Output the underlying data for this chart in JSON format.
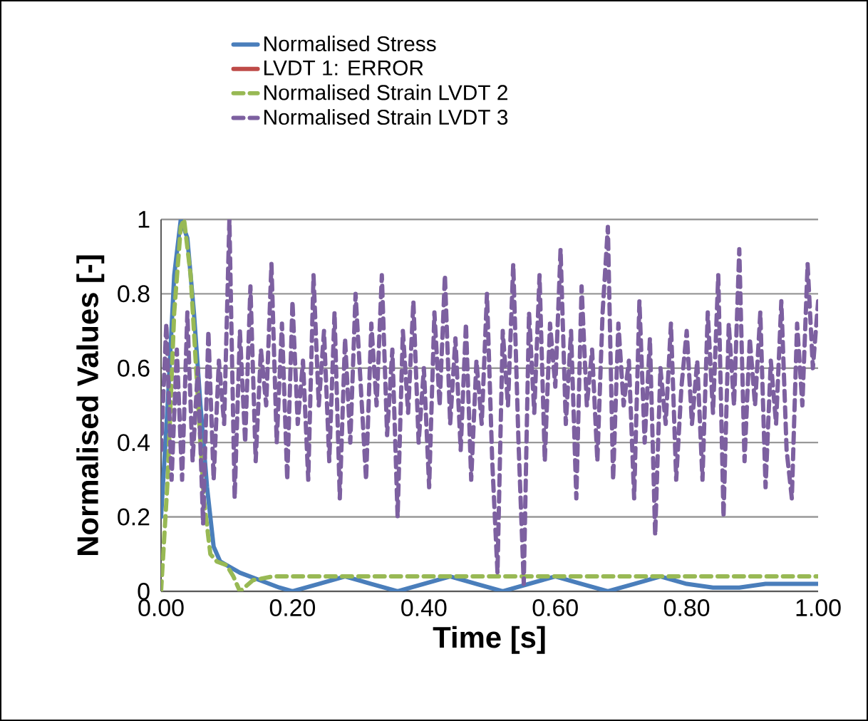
{
  "chart_data": {
    "type": "line",
    "xlabel": "Time [s]",
    "ylabel": "Normalised Values [-]",
    "xlim": [
      0,
      1
    ],
    "ylim": [
      0,
      1
    ],
    "xticks": [
      {
        "value": 0,
        "label": "0.00"
      },
      {
        "value": 0.2,
        "label": "0.20"
      },
      {
        "value": 0.4,
        "label": "0.40"
      },
      {
        "value": 0.6,
        "label": "0.60"
      },
      {
        "value": 0.8,
        "label": "0.80"
      },
      {
        "value": 1,
        "label": "1.00"
      }
    ],
    "yticks": [
      0,
      0.2,
      0.4,
      0.6,
      0.8,
      1
    ],
    "grid": "y",
    "legend": "top",
    "marker": "none",
    "series": [
      {
        "name": "Normalised Stress",
        "color": "#4a7ebb",
        "line_style": "solid",
        "x": [
          0,
          0.01,
          0.02,
          0.03,
          0.04,
          0.05,
          0.06,
          0.07,
          0.08,
          0.09,
          0.1,
          0.12,
          0.15,
          0.18,
          0.2,
          0.24,
          0.28,
          0.32,
          0.36,
          0.4,
          0.44,
          0.48,
          0.52,
          0.56,
          0.6,
          0.64,
          0.68,
          0.72,
          0.76,
          0.8,
          0.84,
          0.88,
          0.92,
          0.96,
          1
        ],
        "values": [
          0.2,
          0.5,
          0.85,
          1.0,
          0.95,
          0.75,
          0.5,
          0.28,
          0.12,
          0.08,
          0.07,
          0.05,
          0.03,
          0.01,
          0.0,
          0.02,
          0.04,
          0.02,
          0.0,
          0.02,
          0.04,
          0.02,
          0.0,
          0.02,
          0.04,
          0.02,
          0.0,
          0.02,
          0.04,
          0.02,
          0.01,
          0.01,
          0.02,
          0.02,
          0.02
        ]
      },
      {
        "name": "LVDT 1: ERROR",
        "color": "#be4b48",
        "line_style": "solid"
      },
      {
        "name": "Normalised Strain LVDT 2",
        "color": "#98b954",
        "line_style": "dashed",
        "x": [
          0,
          0.01,
          0.02,
          0.03,
          0.035,
          0.045,
          0.055,
          0.065,
          0.075,
          0.085,
          0.1,
          0.11,
          0.12,
          0.14,
          0.17,
          0.2,
          0.3,
          0.4,
          0.5,
          0.6,
          0.7,
          0.8,
          0.9,
          1
        ],
        "values": [
          0,
          0.3,
          0.75,
          0.98,
          1.0,
          0.85,
          0.55,
          0.25,
          0.1,
          0.08,
          0.07,
          0.04,
          0.0,
          0.03,
          0.04,
          0.04,
          0.04,
          0.04,
          0.04,
          0.04,
          0.04,
          0.04,
          0.04,
          0.04
        ]
      },
      {
        "name": "Normalised Strain LVDT 3",
        "color": "#7d60a0",
        "line_style": "dashed",
        "x": [
          0,
          0.008,
          0.016,
          0.024,
          0.032,
          0.04,
          0.048,
          0.056,
          0.064,
          0.072,
          0.08,
          0.088,
          0.096,
          0.104,
          0.112,
          0.12,
          0.128,
          0.136,
          0.144,
          0.152,
          0.16,
          0.168,
          0.176,
          0.184,
          0.192,
          0.2,
          0.208,
          0.216,
          0.224,
          0.232,
          0.24,
          0.248,
          0.256,
          0.264,
          0.272,
          0.28,
          0.288,
          0.296,
          0.304,
          0.312,
          0.32,
          0.328,
          0.336,
          0.344,
          0.352,
          0.36,
          0.368,
          0.376,
          0.384,
          0.392,
          0.4,
          0.408,
          0.416,
          0.424,
          0.432,
          0.44,
          0.448,
          0.456,
          0.464,
          0.472,
          0.48,
          0.488,
          0.496,
          0.504,
          0.512,
          0.52,
          0.528,
          0.536,
          0.544,
          0.552,
          0.56,
          0.568,
          0.576,
          0.584,
          0.592,
          0.6,
          0.608,
          0.616,
          0.624,
          0.632,
          0.64,
          0.648,
          0.656,
          0.664,
          0.672,
          0.68,
          0.688,
          0.696,
          0.704,
          0.712,
          0.72,
          0.728,
          0.736,
          0.744,
          0.752,
          0.76,
          0.768,
          0.776,
          0.784,
          0.792,
          0.8,
          0.808,
          0.816,
          0.824,
          0.832,
          0.84,
          0.848,
          0.856,
          0.864,
          0.872,
          0.88,
          0.888,
          0.896,
          0.904,
          0.912,
          0.92,
          0.928,
          0.936,
          0.944,
          0.952,
          0.96,
          0.968,
          0.976,
          0.984,
          0.992,
          1
        ],
        "values": [
          0.38,
          0.72,
          0.3,
          0.65,
          0.3,
          0.75,
          0.35,
          0.6,
          0.18,
          0.7,
          0.3,
          0.62,
          0.45,
          1.0,
          0.25,
          0.7,
          0.4,
          0.82,
          0.35,
          0.65,
          0.5,
          0.88,
          0.4,
          0.72,
          0.3,
          0.78,
          0.45,
          0.62,
          0.3,
          0.85,
          0.5,
          0.7,
          0.35,
          0.75,
          0.25,
          0.68,
          0.4,
          0.8,
          0.55,
          0.3,
          0.72,
          0.5,
          0.85,
          0.42,
          0.65,
          0.2,
          0.7,
          0.48,
          0.78,
          0.4,
          0.6,
          0.28,
          0.75,
          0.5,
          0.85,
          0.45,
          0.68,
          0.38,
          0.72,
          0.3,
          0.62,
          0.45,
          0.8,
          0.35,
          0.05,
          0.7,
          0.5,
          0.88,
          0.4,
          0.02,
          0.75,
          0.48,
          0.85,
          0.35,
          0.72,
          0.55,
          0.92,
          0.45,
          0.7,
          0.25,
          0.82,
          0.5,
          0.65,
          0.35,
          0.75,
          0.98,
          0.3,
          0.72,
          0.5,
          0.62,
          0.25,
          0.78,
          0.4,
          0.68,
          0.15,
          0.6,
          0.45,
          0.72,
          0.3,
          0.55,
          0.7,
          0.45,
          0.62,
          0.3,
          0.75,
          0.48,
          0.85,
          0.2,
          0.72,
          0.5,
          0.92,
          0.35,
          0.68,
          0.5,
          0.75,
          0.28,
          0.62,
          0.45,
          0.78,
          0.38,
          0.25,
          0.72,
          0.5,
          0.88,
          0.6,
          0.78
        ]
      }
    ]
  }
}
